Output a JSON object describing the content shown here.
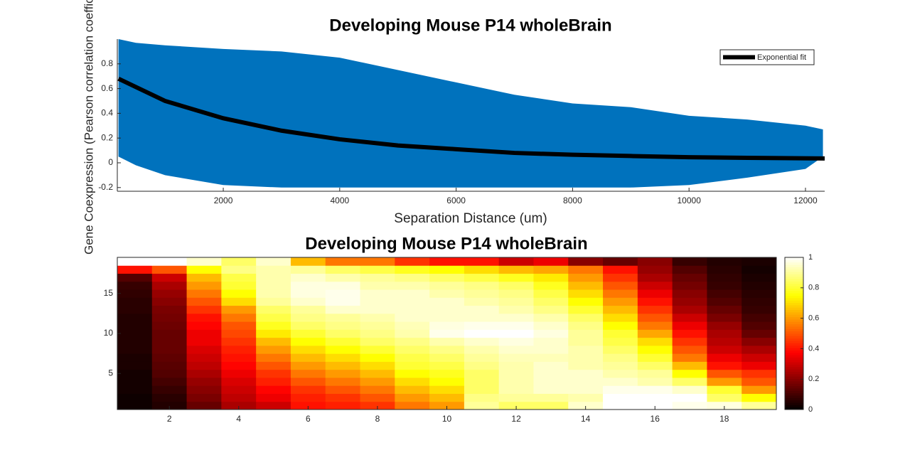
{
  "chart_data": [
    {
      "type": "scatter",
      "title": "Developing Mouse P14 wholeBrain",
      "x_label": "Separation Distance (um)",
      "y_label": "Gene Coexpression (Pearson correlation coefficient)",
      "color": "#0072bd",
      "x": [
        200,
        500,
        1000,
        2000,
        3000,
        4000,
        5000,
        6000,
        7000,
        8000,
        9000,
        10000,
        11000,
        12000,
        12300
      ],
      "y_upper": [
        1,
        0.97,
        0.95,
        0.92,
        0.9,
        0.85,
        0.75,
        0.65,
        0.55,
        0.48,
        0.45,
        0.38,
        0.35,
        0.3,
        0.27
      ],
      "y_lower": [
        0.05,
        -0.02,
        -0.1,
        -0.18,
        -0.2,
        -0.2,
        -0.2,
        -0.2,
        -0.2,
        -0.2,
        -0.2,
        -0.18,
        -0.12,
        -0.05,
        0.05
      ],
      "fit": {
        "name": "Exponential fit",
        "color": "#000000",
        "x": [
          200,
          1000,
          2000,
          3000,
          4000,
          5000,
          6000,
          7000,
          8000,
          9000,
          10000,
          11000,
          12330
        ],
        "y": [
          0.68,
          0.5,
          0.36,
          0.26,
          0.19,
          0.14,
          0.11,
          0.08,
          0.065,
          0.055,
          0.045,
          0.04,
          0.035
        ]
      },
      "legend": "upper right",
      "xlim": [
        180,
        12330
      ],
      "ylim": [
        -0.23,
        1
      ],
      "xticks": [
        2000,
        4000,
        6000,
        8000,
        10000,
        12000
      ],
      "yticks": [
        -0.2,
        0,
        0.2,
        0.4,
        0.6,
        0.8
      ]
    },
    {
      "type": "heatmap",
      "title": "Developing Mouse P14 wholeBrain",
      "colormap": "hot",
      "clim": [
        0,
        1
      ],
      "cticks": [
        0,
        0.2,
        0.4,
        0.6,
        0.8,
        1
      ],
      "xlim": [
        0.5,
        19.5
      ],
      "ylim": [
        0.5,
        19.5
      ],
      "xticks": [
        2,
        4,
        6,
        8,
        10,
        12,
        14,
        16,
        18
      ],
      "yticks": [
        5,
        10,
        15
      ],
      "z": [
        [
          0.02,
          0.05,
          0.15,
          0.25,
          0.3,
          0.4,
          0.42,
          0.45,
          0.55,
          0.6,
          0.9,
          0.85,
          0.85,
          0.95,
          1,
          1,
          0.98,
          0.97,
          0.9
        ],
        [
          0.02,
          0.06,
          0.18,
          0.28,
          0.35,
          0.42,
          0.45,
          0.5,
          0.6,
          0.65,
          0.88,
          0.9,
          0.9,
          0.92,
          1,
          1,
          1,
          0.85,
          0.75
        ],
        [
          0.03,
          0.08,
          0.2,
          0.3,
          0.38,
          0.45,
          0.5,
          0.55,
          0.65,
          0.7,
          0.85,
          0.92,
          0.95,
          0.95,
          0.98,
          0.98,
          0.95,
          0.8,
          0.6
        ],
        [
          0.03,
          0.1,
          0.22,
          0.32,
          0.42,
          0.5,
          0.55,
          0.6,
          0.7,
          0.75,
          0.85,
          0.92,
          0.95,
          0.95,
          0.95,
          0.92,
          0.85,
          0.6,
          0.5
        ],
        [
          0.03,
          0.12,
          0.25,
          0.35,
          0.45,
          0.55,
          0.6,
          0.65,
          0.75,
          0.78,
          0.85,
          0.92,
          0.95,
          0.95,
          0.92,
          0.9,
          0.75,
          0.5,
          0.45
        ],
        [
          0.04,
          0.13,
          0.28,
          0.38,
          0.5,
          0.6,
          0.65,
          0.7,
          0.8,
          0.82,
          0.88,
          0.92,
          0.95,
          0.92,
          0.9,
          0.85,
          0.65,
          0.4,
          0.35
        ],
        [
          0.04,
          0.14,
          0.3,
          0.4,
          0.55,
          0.65,
          0.7,
          0.75,
          0.82,
          0.85,
          0.9,
          0.93,
          0.93,
          0.92,
          0.88,
          0.8,
          0.55,
          0.35,
          0.3
        ],
        [
          0.05,
          0.15,
          0.32,
          0.42,
          0.6,
          0.7,
          0.75,
          0.8,
          0.85,
          0.88,
          0.92,
          0.95,
          0.95,
          0.92,
          0.85,
          0.75,
          0.5,
          0.3,
          0.25
        ],
        [
          0.05,
          0.15,
          0.35,
          0.45,
          0.65,
          0.75,
          0.8,
          0.85,
          0.88,
          0.92,
          0.95,
          0.97,
          0.95,
          0.9,
          0.82,
          0.7,
          0.45,
          0.27,
          0.2
        ],
        [
          0.05,
          0.15,
          0.35,
          0.48,
          0.72,
          0.8,
          0.85,
          0.88,
          0.92,
          0.98,
          1,
          1,
          0.97,
          0.9,
          0.8,
          0.62,
          0.4,
          0.25,
          0.15
        ],
        [
          0.05,
          0.16,
          0.38,
          0.5,
          0.78,
          0.85,
          0.88,
          0.9,
          0.93,
          0.97,
          0.98,
          0.98,
          0.95,
          0.88,
          0.75,
          0.55,
          0.35,
          0.22,
          0.12
        ],
        [
          0.05,
          0.17,
          0.4,
          0.55,
          0.82,
          0.88,
          0.9,
          0.92,
          0.95,
          0.95,
          0.95,
          0.95,
          0.92,
          0.85,
          0.7,
          0.5,
          0.3,
          0.18,
          0.1
        ],
        [
          0.06,
          0.18,
          0.45,
          0.6,
          0.85,
          0.9,
          0.95,
          0.95,
          0.95,
          0.95,
          0.95,
          0.92,
          0.88,
          0.8,
          0.65,
          0.45,
          0.25,
          0.15,
          0.08
        ],
        [
          0.06,
          0.2,
          0.5,
          0.7,
          0.9,
          0.95,
          0.98,
          0.95,
          0.95,
          0.95,
          0.92,
          0.9,
          0.85,
          0.75,
          0.6,
          0.4,
          0.22,
          0.12,
          0.07
        ],
        [
          0.07,
          0.22,
          0.55,
          0.75,
          0.92,
          0.97,
          0.98,
          0.95,
          0.95,
          0.92,
          0.9,
          0.88,
          0.82,
          0.7,
          0.55,
          0.35,
          0.2,
          0.1,
          0.06
        ],
        [
          0.08,
          0.25,
          0.6,
          0.8,
          0.92,
          0.97,
          0.97,
          0.92,
          0.92,
          0.9,
          0.88,
          0.85,
          0.78,
          0.65,
          0.5,
          0.3,
          0.17,
          0.08,
          0.05
        ],
        [
          0.12,
          0.3,
          0.65,
          0.82,
          0.92,
          0.95,
          0.92,
          0.9,
          0.88,
          0.85,
          0.82,
          0.78,
          0.72,
          0.6,
          0.45,
          0.25,
          0.15,
          0.07,
          0.04
        ],
        [
          0.4,
          0.5,
          0.75,
          0.88,
          0.92,
          0.9,
          0.85,
          0.82,
          0.78,
          0.75,
          0.7,
          0.65,
          0.62,
          0.55,
          0.4,
          0.22,
          0.12,
          0.06,
          0.03
        ],
        [
          1,
          1,
          0.95,
          0.85,
          0.95,
          0.65,
          0.55,
          0.55,
          0.45,
          0.4,
          0.4,
          0.3,
          0.35,
          0.2,
          0.15,
          0.2,
          0.08,
          0.05,
          0.04
        ]
      ]
    }
  ]
}
